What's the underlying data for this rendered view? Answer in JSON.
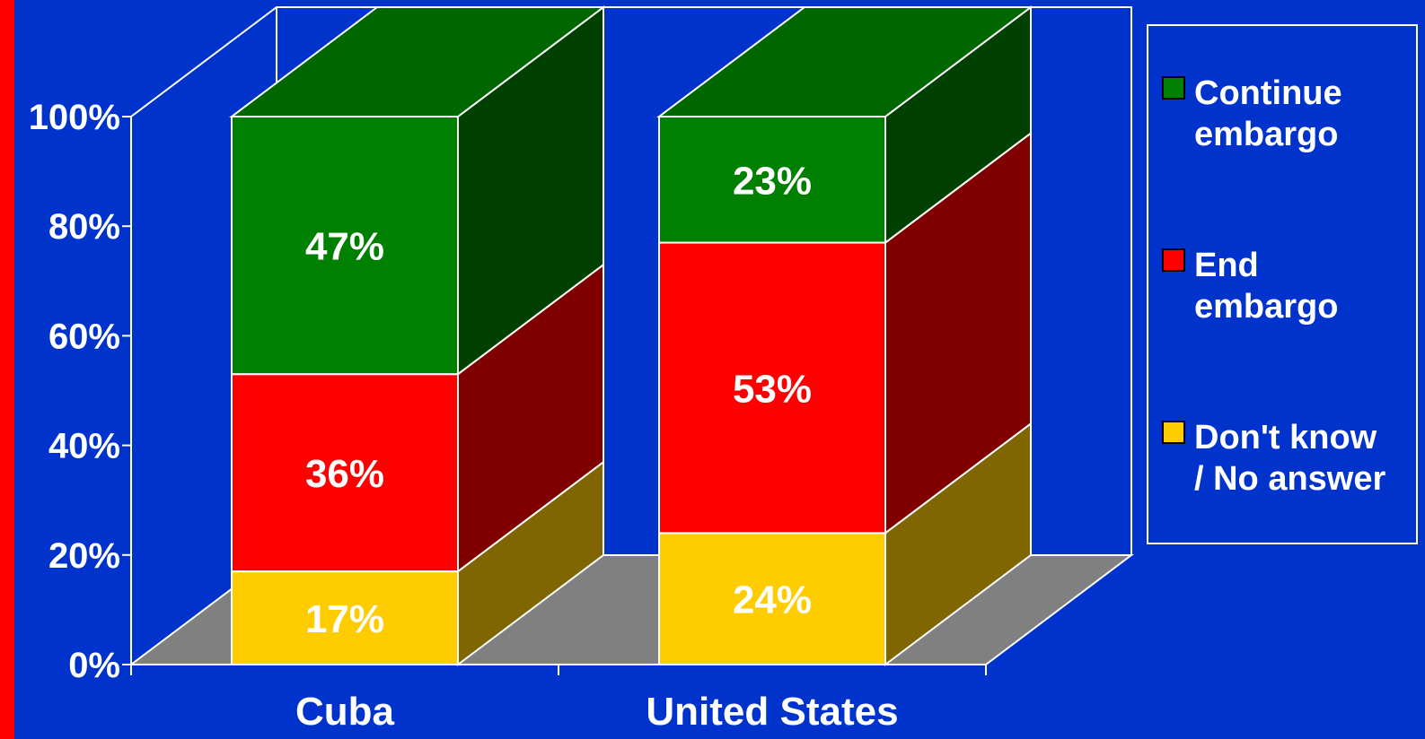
{
  "chart_data": {
    "type": "bar",
    "stacked": true,
    "three_d": true,
    "categories": [
      "Cuba",
      "United States"
    ],
    "series": [
      {
        "name": "Don't know / No answer",
        "legend_lines": [
          "Don't know",
          "/ No answer"
        ],
        "values": [
          17,
          24
        ],
        "labels": [
          "17%",
          "24%"
        ],
        "color": "#ffcc00",
        "side_color": "#806600"
      },
      {
        "name": "End embargo",
        "legend_lines": [
          "End",
          "embargo"
        ],
        "values": [
          36,
          53
        ],
        "labels": [
          "36%",
          "53%"
        ],
        "color": "#ff0000",
        "side_color": "#800000"
      },
      {
        "name": "Continue embargo",
        "legend_lines": [
          "Continue",
          "embargo"
        ],
        "values": [
          47,
          23
        ],
        "labels": [
          "47%",
          "23%"
        ],
        "color": "#008000",
        "side_color": "#004000"
      }
    ],
    "y_ticks": [
      "0%",
      "20%",
      "40%",
      "60%",
      "80%",
      "100%"
    ],
    "ylim": [
      0,
      100
    ],
    "legend_order": [
      2,
      1,
      0
    ],
    "legend_position": "right",
    "title": "",
    "xlabel": "",
    "ylabel": ""
  },
  "colors": {
    "background": "#0033cc",
    "stripe": "#ff0000",
    "floor": "#808080",
    "axis": "#ffffff"
  }
}
